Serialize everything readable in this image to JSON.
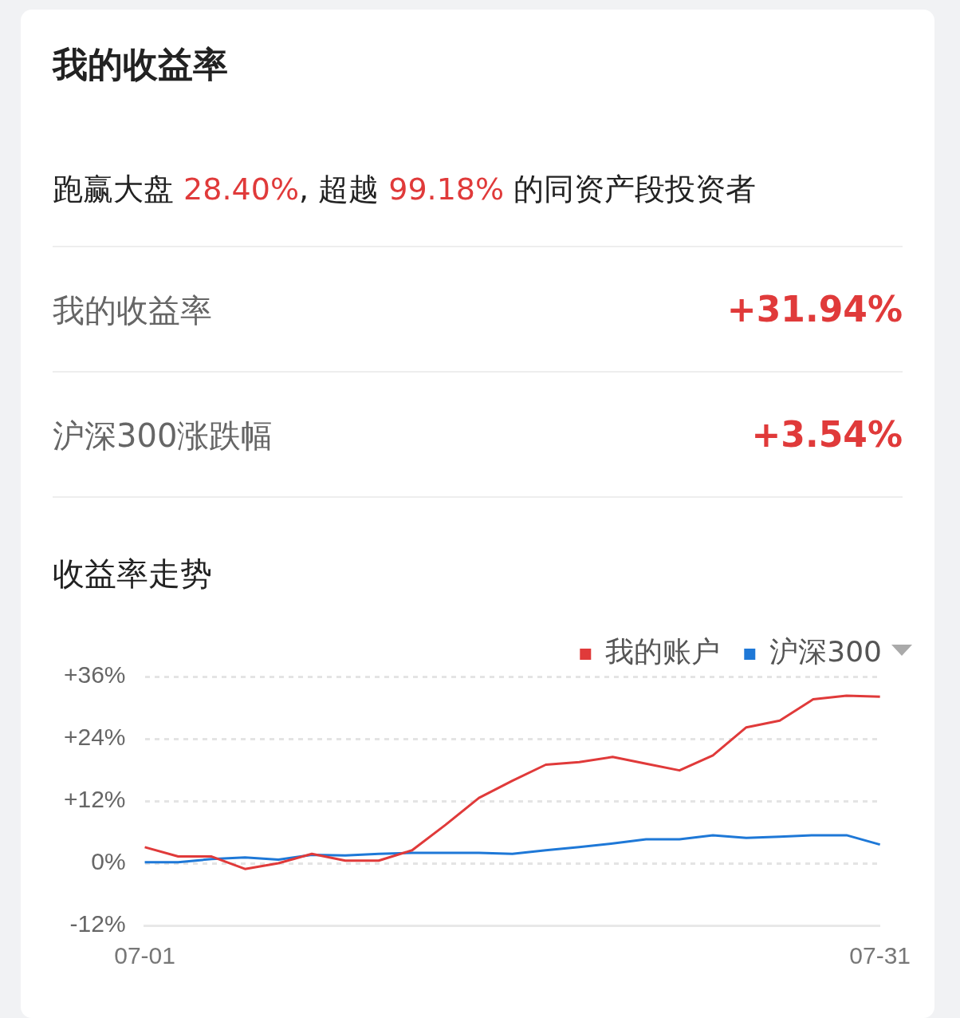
{
  "chart_data": {
    "type": "line",
    "title": "我的收益率",
    "subtitle": "跑赢大盘 28.40%, 超越 99.18% 的同资产段投资者",
    "annotations": [
      "我的收益率",
      "+31.94%",
      "沪深300涨跌幅",
      "+3.54%",
      "收益率走势"
    ],
    "categories": [
      "07-01",
      null,
      null,
      null,
      null,
      null,
      null,
      null,
      null,
      null,
      null,
      null,
      null,
      null,
      null,
      null,
      null,
      null,
      null,
      null,
      null,
      null,
      "07-31"
    ],
    "series": [
      {
        "name": "我的账户",
        "color": "#e03a3a",
        "values": [
          3.1,
          1.3,
          1.3,
          -1.1,
          0,
          1.8,
          0.5,
          0.5,
          2.5,
          7.4,
          12.6,
          15.9,
          19.0,
          19.5,
          20.5,
          19.2,
          17.9,
          20.8,
          26.2,
          27.5,
          31.6,
          32.3,
          32.1
        ]
      },
      {
        "name": "沪深300",
        "color": "#1e78d7",
        "values": [
          0.2,
          0.2,
          0.8,
          1.1,
          0.7,
          1.6,
          1.5,
          1.8,
          2.0,
          2.0,
          2.0,
          1.8,
          2.5,
          3.1,
          3.8,
          4.6,
          4.6,
          5.4,
          4.9,
          5.1,
          5.4,
          5.4,
          3.6
        ]
      }
    ],
    "ylim": [
      -12,
      36
    ],
    "yticks": [
      {
        "value": -12,
        "label": "-12%"
      },
      {
        "value": 0,
        "label": "0%"
      },
      {
        "value": 12,
        "label": "+12%"
      },
      {
        "value": 24,
        "label": "+24%"
      },
      {
        "value": 36,
        "label": "+36%"
      }
    ],
    "grid": "y",
    "legend": "top right",
    "marker": "none",
    "line_style": "solid"
  }
}
